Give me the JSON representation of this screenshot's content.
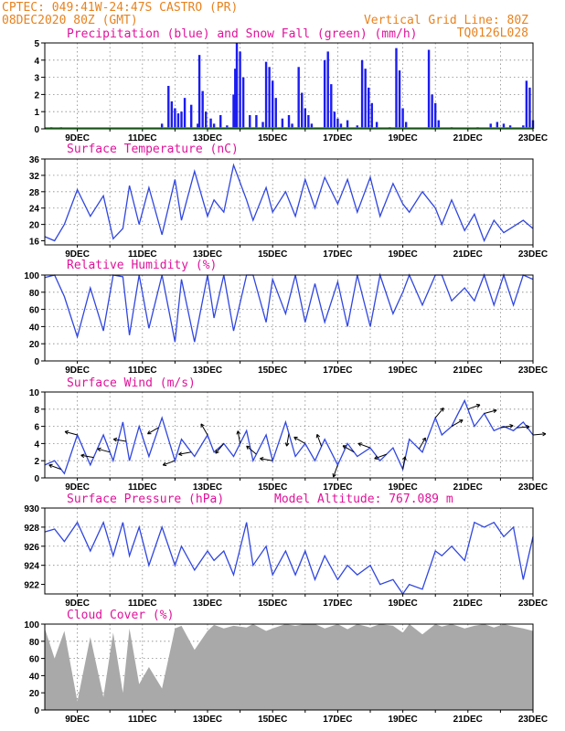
{
  "header": {
    "station": "CPTEC:  049:41W-24:47S  CASTRO (PR)",
    "run": "08DEC2020 80Z (GMT)",
    "vgrid": "Vertical Grid Line: 80Z",
    "code": "TQ0126L028"
  },
  "date_ticks": [
    "9DEC",
    "11DEC",
    "13DEC",
    "15DEC",
    "17DEC",
    "19DEC",
    "21DEC",
    "23DEC"
  ],
  "colors": {
    "header": "#e8821e",
    "title": "#e0139b",
    "precip": "#1c1cf0",
    "snow": "#22aa22",
    "line": "#3046e0",
    "wind": "#000000",
    "cloud": "#a9a9a9"
  },
  "chart_data": [
    {
      "type": "bar",
      "title": "Precipitation (blue) and Snow Fall (green) (mm/h)",
      "ylim": [
        0,
        5
      ],
      "yticks": [
        "5",
        "4",
        "3",
        "2",
        "1",
        "0"
      ],
      "x_range_days": [
        8.0,
        23.0
      ],
      "series": [
        {
          "name": "Precipitation",
          "bars": [
            [
              8.2,
              0.1
            ],
            [
              8.5,
              0.1
            ],
            [
              9.0,
              0.05
            ],
            [
              11.6,
              0.3
            ],
            [
              11.8,
              2.5
            ],
            [
              11.9,
              1.6
            ],
            [
              12.0,
              1.2
            ],
            [
              12.1,
              0.9
            ],
            [
              12.2,
              1.0
            ],
            [
              12.3,
              1.8
            ],
            [
              12.5,
              1.4
            ],
            [
              12.7,
              0.3
            ],
            [
              12.75,
              4.3
            ],
            [
              12.85,
              2.2
            ],
            [
              12.95,
              1.0
            ],
            [
              13.1,
              0.6
            ],
            [
              13.2,
              0.3
            ],
            [
              13.4,
              0.8
            ],
            [
              13.6,
              0.2
            ],
            [
              13.8,
              2.0
            ],
            [
              13.85,
              3.5
            ],
            [
              13.9,
              5.0
            ],
            [
              14.0,
              4.5
            ],
            [
              14.1,
              3.0
            ],
            [
              14.3,
              0.8
            ],
            [
              14.5,
              0.8
            ],
            [
              14.7,
              0.4
            ],
            [
              14.8,
              3.9
            ],
            [
              14.9,
              3.6
            ],
            [
              15.0,
              2.8
            ],
            [
              15.1,
              1.8
            ],
            [
              15.3,
              0.6
            ],
            [
              15.5,
              0.8
            ],
            [
              15.6,
              0.3
            ],
            [
              15.8,
              3.6
            ],
            [
              15.9,
              2.1
            ],
            [
              16.0,
              1.2
            ],
            [
              16.1,
              0.8
            ],
            [
              16.2,
              0.3
            ],
            [
              16.6,
              4.0
            ],
            [
              16.7,
              4.5
            ],
            [
              16.8,
              2.6
            ],
            [
              16.9,
              1.0
            ],
            [
              17.0,
              0.6
            ],
            [
              17.1,
              0.3
            ],
            [
              17.3,
              0.5
            ],
            [
              17.6,
              0.2
            ],
            [
              17.75,
              4.0
            ],
            [
              17.85,
              3.5
            ],
            [
              17.95,
              2.4
            ],
            [
              18.05,
              1.5
            ],
            [
              18.2,
              0.4
            ],
            [
              18.6,
              0.1
            ],
            [
              18.8,
              4.7
            ],
            [
              18.9,
              3.4
            ],
            [
              19.0,
              1.2
            ],
            [
              19.1,
              0.4
            ],
            [
              19.8,
              4.6
            ],
            [
              19.9,
              2.0
            ],
            [
              20.0,
              1.5
            ],
            [
              20.1,
              0.5
            ],
            [
              20.5,
              0.1
            ],
            [
              21.3,
              0.1
            ],
            [
              21.7,
              0.3
            ],
            [
              21.9,
              0.4
            ],
            [
              22.1,
              0.3
            ],
            [
              22.3,
              0.2
            ],
            [
              22.7,
              0.2
            ],
            [
              22.8,
              2.8
            ],
            [
              22.9,
              2.4
            ],
            [
              23.0,
              0.5
            ]
          ]
        },
        {
          "name": "Snow Fall",
          "bars": []
        }
      ]
    },
    {
      "type": "line",
      "title": "Surface Temperature (nC)",
      "ylim": [
        15,
        36
      ],
      "yticks": [
        "36",
        "32",
        "28",
        "24",
        "20",
        "16"
      ],
      "x": [
        8.0,
        8.3,
        8.6,
        9.0,
        9.4,
        9.8,
        10.1,
        10.4,
        10.6,
        10.9,
        11.2,
        11.6,
        12.0,
        12.2,
        12.6,
        13.0,
        13.2,
        13.5,
        13.8,
        14.2,
        14.4,
        14.8,
        15.0,
        15.4,
        15.7,
        16.0,
        16.3,
        16.6,
        17.0,
        17.3,
        17.6,
        18.0,
        18.3,
        18.7,
        19.0,
        19.2,
        19.6,
        20.0,
        20.2,
        20.5,
        20.9,
        21.2,
        21.5,
        21.8,
        22.1,
        22.4,
        22.7,
        23.0
      ],
      "values": [
        17.0,
        16.0,
        20.0,
        28.5,
        22.0,
        27.0,
        16.5,
        19.0,
        29.5,
        20.0,
        29.0,
        17.5,
        31.0,
        21.0,
        33.0,
        22.0,
        26.0,
        23.0,
        34.5,
        26.0,
        21.0,
        29.0,
        23.0,
        28.0,
        22.0,
        31.0,
        24.0,
        31.5,
        25.0,
        31.0,
        23.0,
        31.5,
        22.0,
        30.0,
        25.0,
        23.0,
        28.0,
        24.0,
        20.0,
        26.0,
        18.5,
        22.5,
        16.0,
        21.0,
        18.0,
        19.5,
        21.0,
        19.0
      ]
    },
    {
      "type": "line",
      "title": "Relative Humidity (%)",
      "ylim": [
        0,
        100
      ],
      "yticks": [
        "100",
        "80",
        "60",
        "40",
        "20",
        "0"
      ],
      "x": [
        8.0,
        8.3,
        8.6,
        9.0,
        9.4,
        9.8,
        10.1,
        10.4,
        10.6,
        10.9,
        11.2,
        11.6,
        12.0,
        12.2,
        12.6,
        13.0,
        13.2,
        13.5,
        13.8,
        14.2,
        14.4,
        14.8,
        15.0,
        15.4,
        15.7,
        16.0,
        16.3,
        16.6,
        17.0,
        17.3,
        17.6,
        18.0,
        18.3,
        18.7,
        19.0,
        19.2,
        19.6,
        20.0,
        20.2,
        20.5,
        20.9,
        21.2,
        21.5,
        21.8,
        22.1,
        22.4,
        22.7,
        23.0
      ],
      "values": [
        97,
        100,
        75,
        28,
        85,
        35,
        100,
        98,
        30,
        100,
        38,
        100,
        22,
        95,
        22,
        100,
        50,
        100,
        35,
        100,
        100,
        45,
        95,
        55,
        100,
        45,
        90,
        45,
        92,
        40,
        100,
        40,
        100,
        55,
        80,
        100,
        65,
        100,
        100,
        70,
        85,
        70,
        100,
        65,
        100,
        65,
        100,
        95
      ]
    },
    {
      "type": "line",
      "title": "Surface Wind (m/s)",
      "ylim": [
        0,
        10
      ],
      "yticks": [
        "10",
        "8",
        "6",
        "4",
        "2",
        "0"
      ],
      "x": [
        8.0,
        8.3,
        8.6,
        9.0,
        9.4,
        9.8,
        10.1,
        10.4,
        10.6,
        10.9,
        11.2,
        11.6,
        12.0,
        12.2,
        12.6,
        13.0,
        13.2,
        13.5,
        13.8,
        14.2,
        14.4,
        14.8,
        15.0,
        15.4,
        15.7,
        16.0,
        16.3,
        16.6,
        17.0,
        17.3,
        17.6,
        18.0,
        18.3,
        18.7,
        19.0,
        19.2,
        19.6,
        20.0,
        20.2,
        20.5,
        20.9,
        21.2,
        21.5,
        21.8,
        22.1,
        22.4,
        22.7,
        23.0
      ],
      "values": [
        1.5,
        2.0,
        0.5,
        5.0,
        1.5,
        5.0,
        2.0,
        6.5,
        2.0,
        6.0,
        2.5,
        7.0,
        2.0,
        4.5,
        2.5,
        5.0,
        3.0,
        4.0,
        2.5,
        5.5,
        2.0,
        5.0,
        2.0,
        6.5,
        2.5,
        4.0,
        2.0,
        4.5,
        1.5,
        4.0,
        2.5,
        3.5,
        2.0,
        3.5,
        1.0,
        4.5,
        3.0,
        7.0,
        5.0,
        6.0,
        9.0,
        6.0,
        7.5,
        5.5,
        6.0,
        5.5,
        6.5,
        5.0
      ],
      "arrows_at": [
        8.5,
        9.0,
        9.5,
        10.0,
        10.5,
        11.5,
        12.0,
        12.5,
        13.0,
        13.5,
        14.0,
        14.5,
        15.0,
        15.5,
        16.0,
        16.5,
        17.0,
        17.5,
        18.0,
        18.5,
        19.0,
        19.5,
        20.0,
        20.5,
        21.0,
        21.5,
        22.0,
        22.5,
        23.0
      ],
      "arrow_dirs_deg": [
        160,
        165,
        170,
        165,
        170,
        210,
        200,
        190,
        120,
        230,
        100,
        140,
        170,
        260,
        150,
        110,
        250,
        150,
        160,
        200,
        80,
        60,
        50,
        30,
        20,
        15,
        10,
        5,
        5
      ]
    },
    {
      "type": "line",
      "title": "Surface Pressure (hPa)",
      "annotation": "Model Altitude: 767.089 m",
      "ylim": [
        921,
        930
      ],
      "yticks": [
        "930",
        "928",
        "926",
        "924",
        "922"
      ],
      "x": [
        8.0,
        8.3,
        8.6,
        9.0,
        9.4,
        9.8,
        10.1,
        10.4,
        10.6,
        10.9,
        11.2,
        11.6,
        12.0,
        12.2,
        12.6,
        13.0,
        13.2,
        13.5,
        13.8,
        14.2,
        14.4,
        14.8,
        15.0,
        15.4,
        15.7,
        16.0,
        16.3,
        16.6,
        17.0,
        17.3,
        17.6,
        18.0,
        18.3,
        18.7,
        19.0,
        19.2,
        19.6,
        20.0,
        20.2,
        20.5,
        20.9,
        21.2,
        21.5,
        21.8,
        22.1,
        22.4,
        22.7,
        23.0
      ],
      "values": [
        927.5,
        927.8,
        926.5,
        928.5,
        925.5,
        928.5,
        925.0,
        928.5,
        925.0,
        928.0,
        924.0,
        928.0,
        924.0,
        926.0,
        923.5,
        925.5,
        924.5,
        925.5,
        923.0,
        928.5,
        924.0,
        926.0,
        923.0,
        925.5,
        923.0,
        925.5,
        922.5,
        925.0,
        922.5,
        924.0,
        923.0,
        924.0,
        922.0,
        922.5,
        921.0,
        922.0,
        921.5,
        925.5,
        925.0,
        926.0,
        924.5,
        928.5,
        928.0,
        928.5,
        927.0,
        928.0,
        922.5,
        927.0
      ]
    },
    {
      "type": "area",
      "title": "Cloud Cover (%)",
      "ylim": [
        0,
        100
      ],
      "yticks": [
        "100",
        "80",
        "60",
        "40",
        "20",
        "0"
      ],
      "x": [
        8.0,
        8.3,
        8.6,
        9.0,
        9.4,
        9.8,
        10.1,
        10.4,
        10.6,
        10.9,
        11.2,
        11.6,
        12.0,
        12.2,
        12.6,
        13.0,
        13.2,
        13.5,
        13.8,
        14.2,
        14.4,
        14.8,
        15.0,
        15.4,
        15.7,
        16.0,
        16.3,
        16.6,
        17.0,
        17.3,
        17.6,
        18.0,
        18.3,
        18.7,
        19.0,
        19.2,
        19.6,
        20.0,
        20.2,
        20.5,
        20.9,
        21.2,
        21.5,
        21.8,
        22.1,
        22.4,
        22.7,
        23.0
      ],
      "values": [
        95,
        60,
        92,
        10,
        85,
        15,
        90,
        20,
        95,
        30,
        50,
        25,
        95,
        98,
        70,
        92,
        99,
        95,
        98,
        96,
        100,
        92,
        95,
        100,
        98,
        100,
        100,
        95,
        100,
        94,
        100,
        96,
        100,
        98,
        90,
        100,
        88,
        100,
        97,
        100,
        95,
        98,
        100,
        96,
        100,
        97,
        95,
        92
      ]
    }
  ]
}
